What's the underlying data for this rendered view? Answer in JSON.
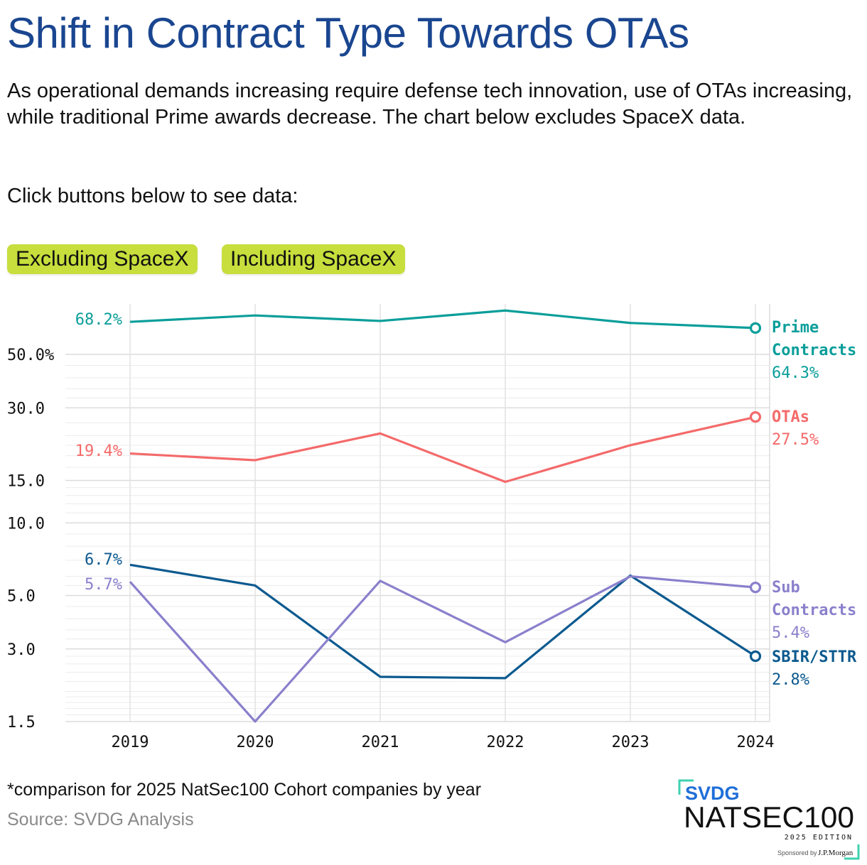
{
  "header": {
    "title": "Shift in Contract Type Towards OTAs",
    "subtitle": "As operational demands increasing require defense tech innovation, use of OTAs increasing, while traditional Prime awards decrease. The chart below excludes SpaceX data.",
    "prompt": "Click buttons below to see data:"
  },
  "buttons": {
    "excluding": "Excluding SpaceX",
    "including": "Including SpaceX"
  },
  "chart_data": {
    "type": "line",
    "title": "Shift in Contract Type Towards OTAs",
    "xlabel": "",
    "ylabel": "",
    "y_scale": "log",
    "ylim": [
      1.5,
      75
    ],
    "x": [
      "2019",
      "2020",
      "2021",
      "2022",
      "2023",
      "2024"
    ],
    "y_ticks": [
      1.5,
      3.0,
      5.0,
      10.0,
      15.0,
      30.0,
      50.0
    ],
    "y_tick_labels": [
      "1.5",
      "3.0",
      "5.0",
      "10.0",
      "15.0",
      "30.0",
      "50.0%"
    ],
    "grid": true,
    "series": [
      {
        "key": "prime",
        "name": "Prime Contracts",
        "name_lines": [
          "Prime",
          "Contracts"
        ],
        "color": "#0a9e9a",
        "values": [
          68.2,
          72.5,
          68.8,
          76.0,
          67.5,
          64.3
        ],
        "start_label": "68.2%",
        "end_label": "64.3%"
      },
      {
        "key": "ota",
        "name": "OTAs",
        "name_lines": [
          "OTAs"
        ],
        "color": "#f46a6a",
        "values": [
          19.4,
          18.2,
          23.5,
          14.8,
          21.0,
          27.5
        ],
        "start_label": "19.4%",
        "end_label": "27.5%"
      },
      {
        "key": "sbir",
        "name": "SBIR/STTR",
        "name_lines": [
          "SBIR/STTR"
        ],
        "color": "#0c5a8f",
        "values": [
          6.7,
          5.5,
          2.3,
          2.27,
          6.05,
          2.8
        ],
        "start_label": "6.7%",
        "end_label": "2.8%"
      },
      {
        "key": "sub",
        "name": "Sub Contracts",
        "name_lines": [
          "Sub",
          "Contracts"
        ],
        "color": "#8a80cc",
        "values": [
          5.7,
          1.5,
          5.75,
          3.2,
          6.0,
          5.4
        ],
        "start_label": "5.7%",
        "end_label": "5.4%"
      }
    ]
  },
  "footer": {
    "footnote": "*comparison for 2025 NatSec100 Cohort companies by year",
    "source": "Source: SVDG Analysis"
  },
  "logo": {
    "brand": "SVDG",
    "name": "NATSEC100",
    "edition": "2025 EDITION",
    "sponsor_prefix": "Sponsored by",
    "sponsor": "J.P.Morgan",
    "accent": "#3fd2b0",
    "brand_color": "#1f6fd8"
  }
}
